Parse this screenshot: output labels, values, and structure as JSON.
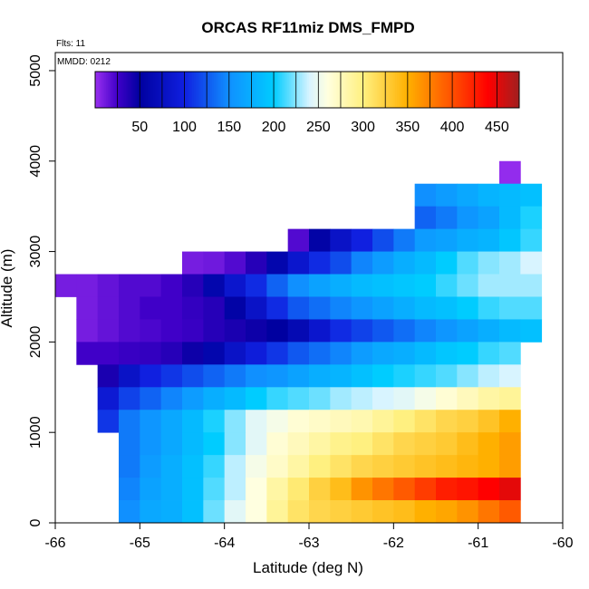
{
  "chart_data": {
    "type": "heatmap",
    "title": "ORCAS RF11miz DMS_FMPD",
    "annotations": {
      "flights": "Flts: 11",
      "date": "MMDD: 0212"
    },
    "xlabel": "Latitude (deg N)",
    "ylabel": "Altitude (m)",
    "xlim": [
      -66,
      -60
    ],
    "ylim": [
      0,
      5200
    ],
    "x_ticks": [
      "-66",
      "-65",
      "-64",
      "-63",
      "-62",
      "-61",
      "-60"
    ],
    "y_ticks": [
      "0",
      "1000",
      "2000",
      "3000",
      "4000",
      "5000"
    ],
    "colorbar": {
      "range": [
        0,
        475
      ],
      "ticks": [
        "50",
        "100",
        "150",
        "200",
        "250",
        "300",
        "350",
        "400",
        "450"
      ]
    },
    "grid": false,
    "lat_bin_width": 0.25,
    "alt_bin_height": 250,
    "cells": [
      {
        "alt": 3875,
        "lat0": -60.75,
        "values": [
          2
        ]
      },
      {
        "alt": 3625,
        "lat0": -61.75,
        "values": [
          150,
          160,
          170,
          180,
          185,
          190
        ]
      },
      {
        "alt": 3375,
        "lat0": -61.75,
        "values": [
          130,
          140,
          155,
          165,
          185,
          205
        ]
      },
      {
        "alt": 3125,
        "lat0": -63.25,
        "values": [
          20,
          55,
          80,
          100,
          120,
          140,
          160,
          165,
          175,
          180,
          195,
          210
        ]
      },
      {
        "alt": 2875,
        "lat0": -64.5,
        "values": [
          10,
          12,
          20,
          35,
          60,
          85,
          105,
          120,
          145,
          160,
          175,
          185,
          200,
          215,
          225,
          230,
          240
        ]
      },
      {
        "alt": 2625,
        "lat0": -66.0,
        "values": [
          10,
          10,
          15,
          20,
          20,
          25,
          35,
          60,
          85,
          105,
          130,
          150,
          165,
          175,
          185,
          190,
          195,
          200,
          210,
          220,
          230,
          230,
          230
        ]
      },
      {
        "alt": 2375,
        "lat0": -65.75,
        "values": [
          10,
          15,
          20,
          25,
          25,
          30,
          35,
          55,
          80,
          105,
          125,
          135,
          145,
          155,
          165,
          175,
          185,
          190,
          200,
          210,
          215,
          215
        ]
      },
      {
        "alt": 2125,
        "lat0": -65.75,
        "values": [
          10,
          15,
          20,
          22,
          25,
          28,
          35,
          40,
          45,
          50,
          65,
          85,
          105,
          115,
          125,
          135,
          145,
          155,
          165,
          175,
          185,
          190
        ]
      },
      {
        "alt": 1875,
        "lat0": -65.75,
        "values": [
          25,
          25,
          28,
          30,
          35,
          45,
          60,
          80,
          95,
          110,
          125,
          135,
          145,
          160,
          170,
          175,
          185,
          195,
          200,
          210,
          215
        ]
      },
      {
        "alt": 1625,
        "lat0": -65.5,
        "values": [
          40,
          80,
          100,
          110,
          120,
          130,
          140,
          150,
          155,
          165,
          175,
          180,
          190,
          200,
          205,
          210,
          215,
          225,
          235,
          240
        ]
      },
      {
        "alt": 1375,
        "lat0": -65.5,
        "values": [
          90,
          115,
          130,
          145,
          160,
          175,
          185,
          200,
          210,
          215,
          220,
          230,
          235,
          240,
          245,
          255,
          265,
          275,
          285,
          290
        ]
      },
      {
        "alt": 1125,
        "lat0": -65.5,
        "values": [
          110,
          140,
          155,
          170,
          185,
          205,
          225,
          245,
          255,
          265,
          270,
          275,
          280,
          290,
          300,
          310,
          320,
          325,
          335,
          350
        ]
      },
      {
        "alt": 875,
        "lat0": -65.25,
        "values": [
          140,
          155,
          170,
          185,
          200,
          225,
          245,
          265,
          275,
          285,
          295,
          300,
          310,
          320,
          325,
          330,
          340,
          350,
          360
        ]
      },
      {
        "alt": 625,
        "lat0": -65.25,
        "values": [
          140,
          160,
          175,
          190,
          210,
          235,
          255,
          270,
          285,
          300,
          310,
          320,
          325,
          330,
          335,
          340,
          345,
          350,
          360
        ]
      },
      {
        "alt": 375,
        "lat0": -65.25,
        "values": [
          145,
          165,
          175,
          190,
          215,
          235,
          260,
          285,
          305,
          325,
          340,
          365,
          380,
          395,
          410,
          425,
          430,
          440,
          450
        ]
      },
      {
        "alt": 125,
        "lat0": -65.25,
        "values": [
          150,
          170,
          175,
          190,
          220,
          245,
          260,
          290,
          310,
          320,
          325,
          330,
          335,
          340,
          350,
          355,
          365,
          380,
          395
        ]
      }
    ]
  }
}
